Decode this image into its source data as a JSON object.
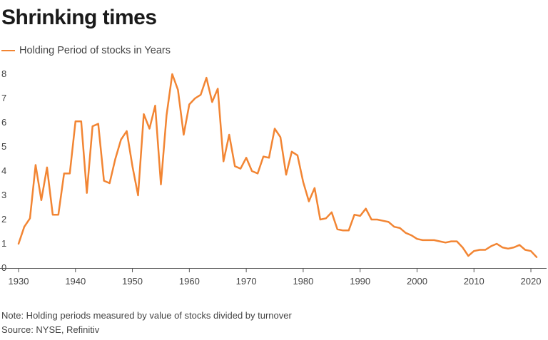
{
  "header": {
    "title": "Shrinking times"
  },
  "legend": {
    "label": "Holding Period of stocks in Years"
  },
  "colors": {
    "series": "#f28533",
    "text": "#444444",
    "axis": "#555555"
  },
  "footer": {
    "note": "Note: Holding periods measured by value of stocks divided by turnover",
    "source": "Source: NYSE, Refinitiv"
  },
  "chart_data": {
    "type": "line",
    "title": "Shrinking times",
    "xlabel": "",
    "ylabel": "",
    "xlim": [
      1930,
      2021
    ],
    "ylim": [
      0,
      8
    ],
    "grid": false,
    "legend_placement": "top-left",
    "x_ticks": [
      "1930",
      "1940",
      "1950",
      "1960",
      "1970",
      "1980",
      "1990",
      "2000",
      "2010",
      "2020"
    ],
    "y_ticks": [
      "0",
      "1",
      "2",
      "3",
      "4",
      "5",
      "6",
      "7",
      "8"
    ],
    "series": [
      {
        "name": "Holding Period of stocks in Years",
        "x": [
          1930,
          1931,
          1932,
          1933,
          1934,
          1935,
          1936,
          1937,
          1938,
          1939,
          1940,
          1941,
          1942,
          1943,
          1944,
          1945,
          1946,
          1947,
          1948,
          1949,
          1950,
          1951,
          1952,
          1953,
          1954,
          1955,
          1956,
          1957,
          1958,
          1959,
          1960,
          1961,
          1962,
          1963,
          1964,
          1965,
          1966,
          1967,
          1968,
          1969,
          1970,
          1971,
          1972,
          1973,
          1974,
          1975,
          1976,
          1977,
          1978,
          1979,
          1980,
          1981,
          1982,
          1983,
          1984,
          1985,
          1986,
          1987,
          1988,
          1989,
          1990,
          1991,
          1992,
          1993,
          1994,
          1995,
          1996,
          1997,
          1998,
          1999,
          2000,
          2001,
          2002,
          2003,
          2004,
          2005,
          2006,
          2007,
          2008,
          2009,
          2010,
          2011,
          2012,
          2013,
          2014,
          2015,
          2016,
          2017,
          2018,
          2019,
          2020,
          2021
        ],
        "values": [
          1.0,
          1.7,
          2.05,
          4.25,
          2.8,
          4.15,
          2.2,
          2.2,
          3.9,
          3.9,
          6.05,
          6.05,
          3.1,
          5.85,
          5.95,
          3.6,
          3.5,
          4.5,
          5.3,
          5.65,
          4.2,
          3.0,
          6.35,
          5.75,
          6.7,
          3.45,
          6.3,
          8.0,
          7.35,
          5.5,
          6.75,
          7.0,
          7.15,
          7.85,
          6.85,
          7.4,
          4.4,
          5.5,
          4.2,
          4.1,
          4.55,
          4.0,
          3.9,
          4.6,
          4.55,
          5.75,
          5.4,
          3.85,
          4.8,
          4.65,
          3.55,
          2.75,
          3.3,
          2.0,
          2.05,
          2.3,
          1.6,
          1.55,
          1.55,
          2.2,
          2.15,
          2.45,
          2.0,
          2.0,
          1.95,
          1.9,
          1.7,
          1.65,
          1.45,
          1.35,
          1.2,
          1.15,
          1.15,
          1.15,
          1.1,
          1.05,
          1.1,
          1.1,
          0.85,
          0.5,
          0.7,
          0.75,
          0.75,
          0.9,
          1.0,
          0.85,
          0.8,
          0.85,
          0.95,
          0.75,
          0.7,
          0.45
        ]
      }
    ]
  }
}
